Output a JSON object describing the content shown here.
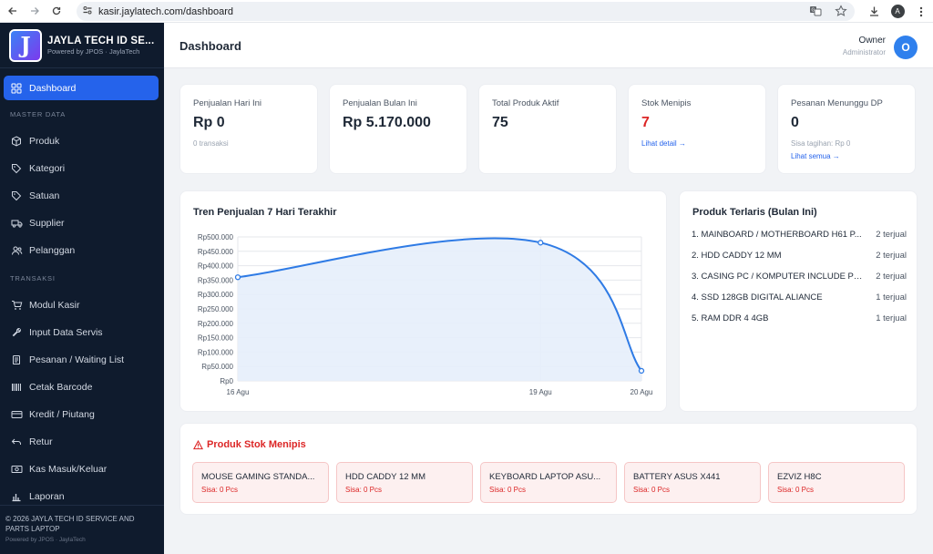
{
  "browser": {
    "url": "kasir.jaylatech.com/dashboard",
    "profile_initial": "A"
  },
  "brand": {
    "logo_letter": "J",
    "title": "JAYLA TECH ID SE...",
    "subtitle": "Powered by JPOS · JaylaTech"
  },
  "sidebar": {
    "active": "Dashboard",
    "sections": {
      "master": "MASTER DATA",
      "transaksi": "TRANSAKSI"
    },
    "items": [
      "Dashboard",
      "Produk",
      "Kategori",
      "Satuan",
      "Supplier",
      "Pelanggan",
      "Modul Kasir",
      "Input Data Servis",
      "Pesanan / Waiting List",
      "Cetak Barcode",
      "Kredit / Piutang",
      "Retur",
      "Kas Masuk/Keluar",
      "Laporan"
    ],
    "footer": {
      "copyright": "© 2026 JAYLA TECH ID SERVICE AND PARTS LAPTOP",
      "powered": "Powered by JPOS · JaylaTech"
    }
  },
  "header": {
    "title": "Dashboard",
    "user_name": "Owner",
    "user_role": "Administrator",
    "avatar_initial": "O"
  },
  "stats": [
    {
      "label": "Penjualan Hari Ini",
      "value": "Rp 0",
      "sub": "0 transaksi"
    },
    {
      "label": "Penjualan Bulan Ini",
      "value": "Rp 5.170.000"
    },
    {
      "label": "Total Produk Aktif",
      "value": "75"
    },
    {
      "label": "Stok Menipis",
      "value": "7",
      "link": "Lihat detail →"
    },
    {
      "label": "Pesanan Menunggu DP",
      "value": "0",
      "sub": "Sisa tagihan: Rp 0",
      "link": "Lihat semua →"
    }
  ],
  "chart_card": {
    "title": "Tren Penjualan 7 Hari Terakhir"
  },
  "chart_data": {
    "type": "area",
    "categories": [
      "16 Agu",
      "19 Agu",
      "20 Agu"
    ],
    "values": [
      360000,
      480000,
      35000
    ],
    "y_ticks": [
      "Rp0",
      "Rp50.000",
      "Rp100.000",
      "Rp150.000",
      "Rp200.000",
      "Rp250.000",
      "Rp300.000",
      "Rp350.000",
      "Rp400.000",
      "Rp450.000",
      "Rp500.000"
    ],
    "ylim": [
      0,
      500000
    ],
    "grid": true,
    "line_color": "#2f7be5",
    "fill_color": "#e6eefb"
  },
  "best_seller": {
    "title": "Produk Terlaris (Bulan Ini)",
    "items": [
      {
        "name": "1. MAINBOARD / MOTHERBOARD H61 P...",
        "qty": "2 terjual"
      },
      {
        "name": "2. HDD CADDY 12 MM",
        "qty": "2 terjual"
      },
      {
        "name": "3. CASING PC / KOMPUTER INCLUDE PS...",
        "qty": "2 terjual"
      },
      {
        "name": "4. SSD 128GB DIGITAL ALIANCE",
        "qty": "1 terjual"
      },
      {
        "name": "5. RAM DDR 4 4GB",
        "qty": "1 terjual"
      }
    ]
  },
  "low_stock": {
    "title": "Produk Stok Menipis",
    "items": [
      {
        "name": "MOUSE GAMING STANDA...",
        "remaining": "Sisa: 0 Pcs"
      },
      {
        "name": "HDD CADDY 12 MM",
        "remaining": "Sisa: 0 Pcs"
      },
      {
        "name": "KEYBOARD LAPTOP ASU...",
        "remaining": "Sisa: 0 Pcs"
      },
      {
        "name": "BATTERY ASUS X441",
        "remaining": "Sisa: 0 Pcs"
      },
      {
        "name": "EZVIZ H8C",
        "remaining": "Sisa: 0 Pcs"
      }
    ]
  },
  "colors": {
    "sidebar_bg": "#0f1b2d",
    "accent": "#2563eb",
    "danger": "#dc2626"
  }
}
